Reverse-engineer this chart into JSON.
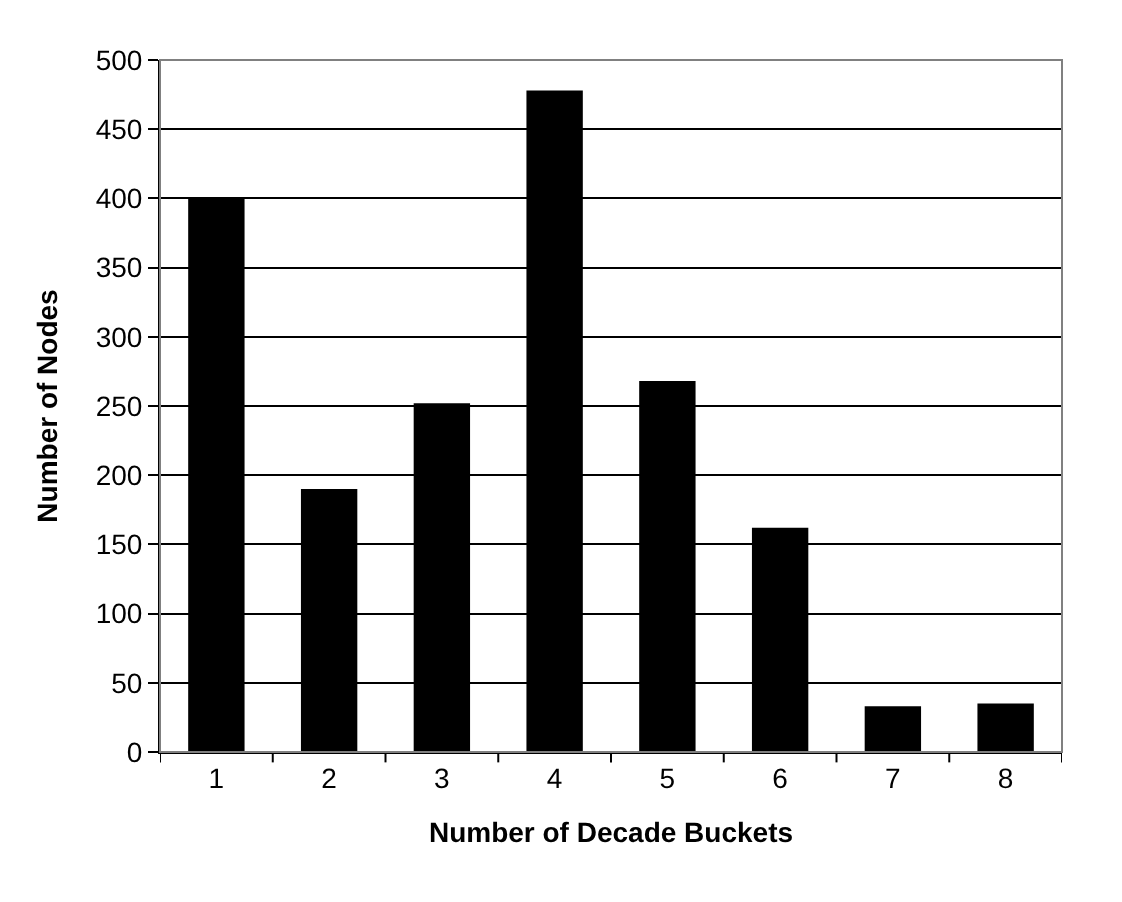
{
  "chart_data": {
    "type": "bar",
    "xlabel": "Number of Decade Buckets",
    "ylabel": "Number of Nodes",
    "categories": [
      "1",
      "2",
      "3",
      "4",
      "5",
      "6",
      "7",
      "8"
    ],
    "values": [
      400,
      190,
      252,
      478,
      268,
      162,
      33,
      35
    ],
    "color": "#000000",
    "ylim": [
      0,
      500
    ],
    "yticks": [
      0,
      50,
      100,
      150,
      200,
      250,
      300,
      350,
      400,
      450,
      500
    ],
    "grid": "y"
  }
}
